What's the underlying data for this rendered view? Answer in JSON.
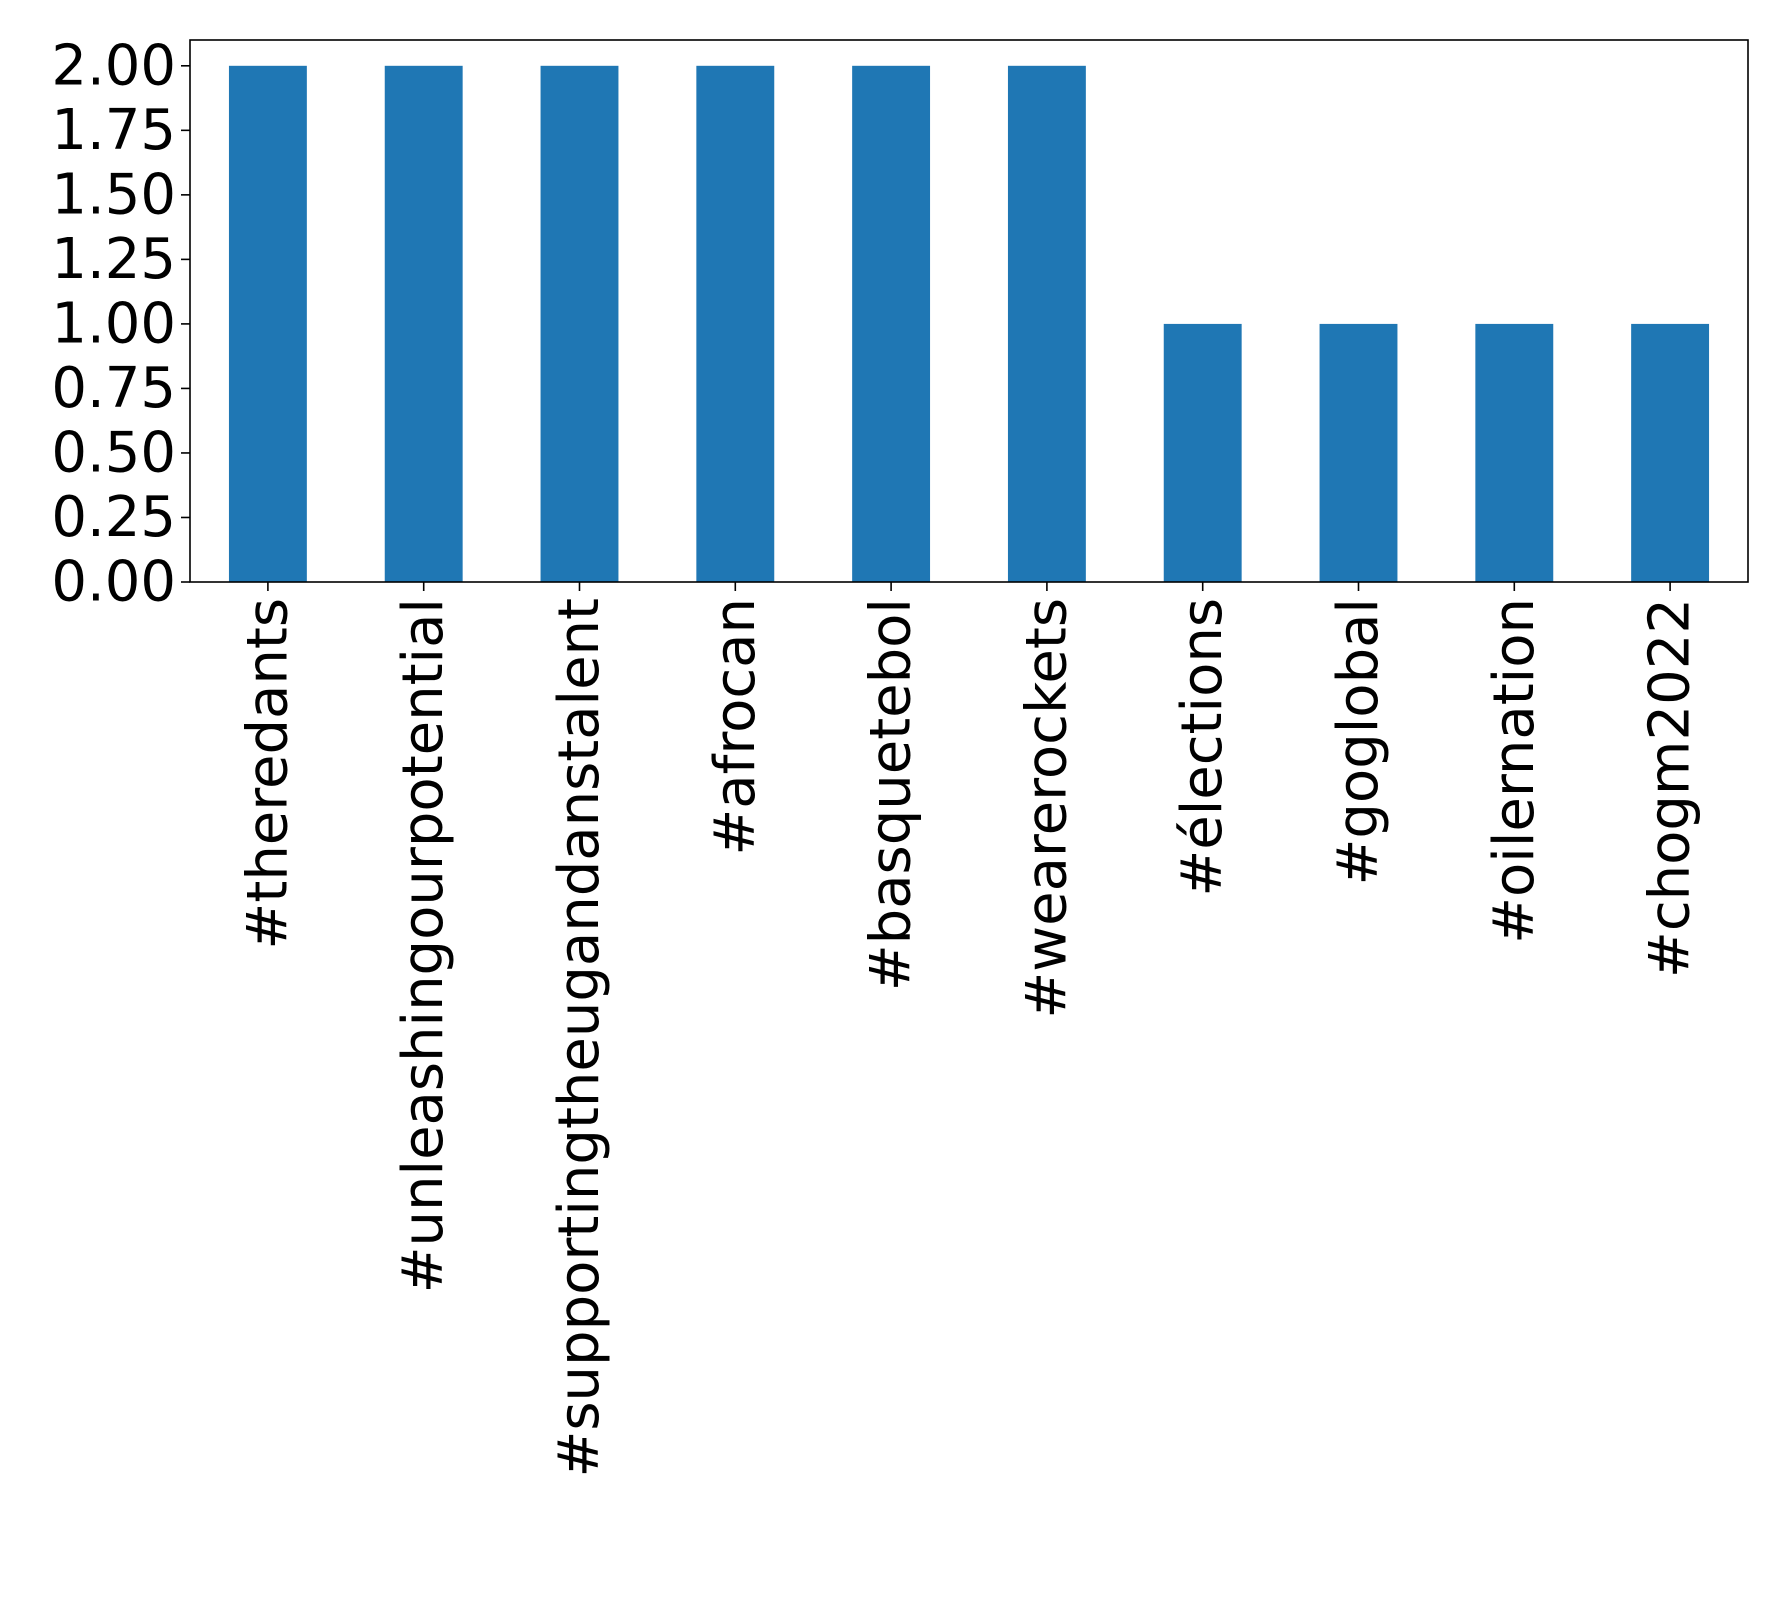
{
  "chart_data": {
    "type": "bar",
    "categories": [
      "#theredants",
      "#unleashingourpotential",
      "#supportingtheugandanstalent",
      "#afrocan",
      "#basquetebol",
      "#wearerockets",
      "#élections",
      "#goglobal",
      "#oilernation",
      "#chogm2022"
    ],
    "values": [
      2,
      2,
      2,
      2,
      2,
      2,
      1,
      1,
      1,
      1
    ],
    "yticks": [
      "0.00",
      "0.25",
      "0.50",
      "0.75",
      "1.00",
      "1.25",
      "1.50",
      "1.75",
      "2.00"
    ],
    "ylim": [
      0,
      2.1
    ],
    "title": "",
    "xlabel": "",
    "ylabel": "",
    "bar_color": "#1f77b4",
    "grid": false,
    "legend": false,
    "xtick_rotation": "vertical"
  }
}
